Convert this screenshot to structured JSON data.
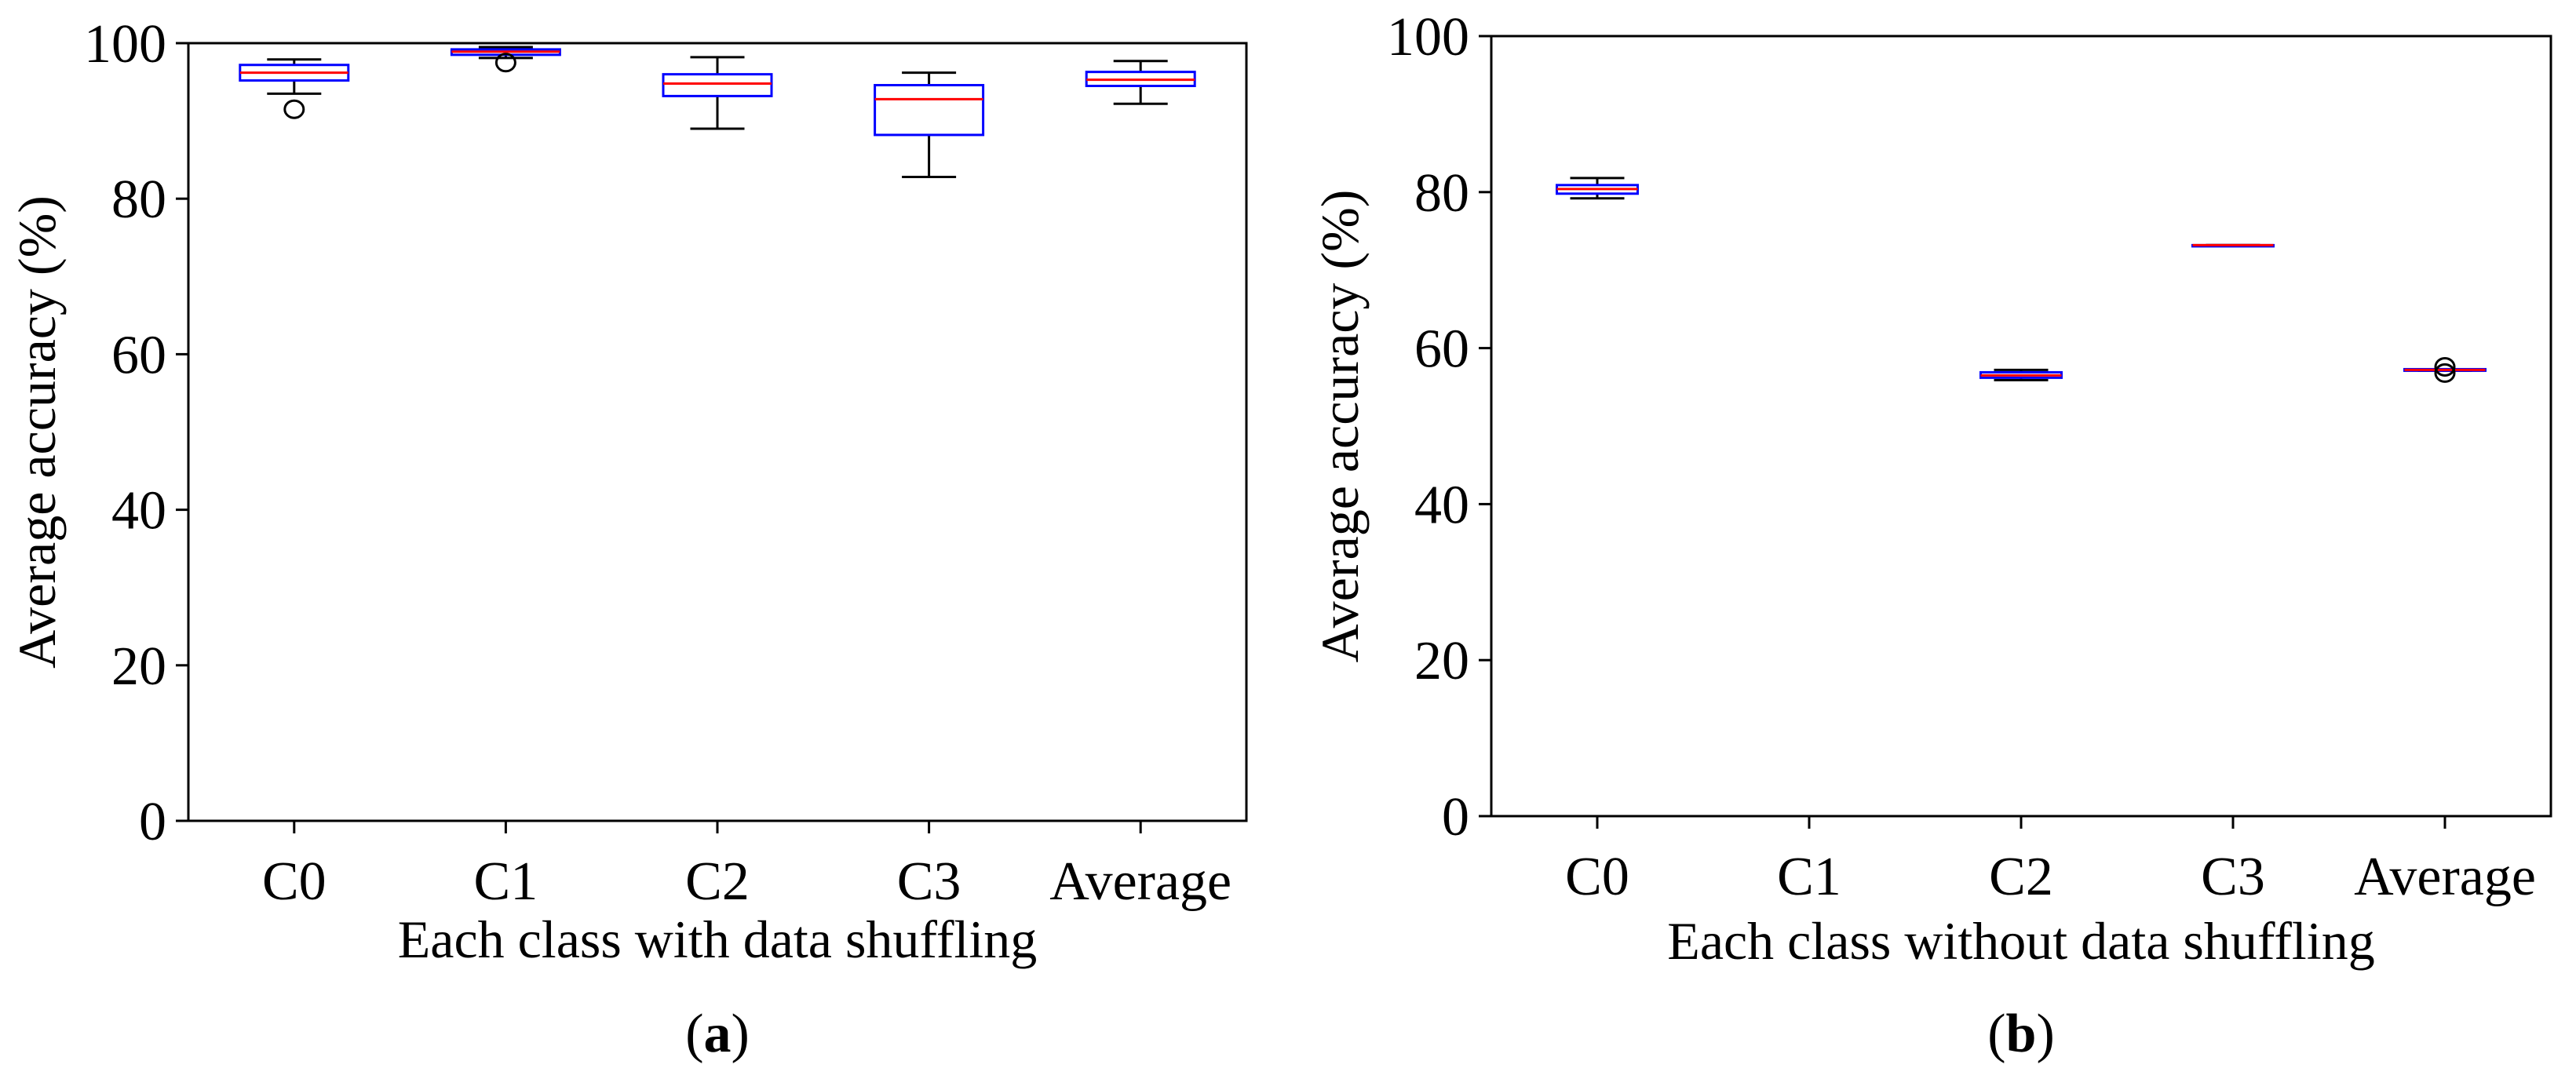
{
  "colors": {
    "box": "#0000ff",
    "median": "#ff0000",
    "whisker": "#000000",
    "frame": "#000000",
    "background": "#ffffff"
  },
  "chart_data": [
    {
      "type": "box",
      "panel_label": "a",
      "xlabel": "Each class with data shuffling",
      "ylabel": "Average accuracy (%)",
      "ylim": [
        0,
        100
      ],
      "yticks": [
        0,
        20,
        40,
        60,
        80,
        100
      ],
      "categories": [
        "C0",
        "C1",
        "C2",
        "C3",
        "Average"
      ],
      "boxes": [
        {
          "category": "C0",
          "min": 93.5,
          "q1": 95.2,
          "median": 96.2,
          "q3": 97.2,
          "max": 97.9,
          "outliers": [
            91.5
          ]
        },
        {
          "category": "C1",
          "min": 98.1,
          "q1": 98.5,
          "median": 98.9,
          "q3": 99.2,
          "max": 99.5,
          "outliers": [
            97.5
          ]
        },
        {
          "category": "C2",
          "min": 89.0,
          "q1": 93.2,
          "median": 94.8,
          "q3": 96.0,
          "max": 98.2,
          "outliers": []
        },
        {
          "category": "C3",
          "min": 82.8,
          "q1": 88.2,
          "median": 92.8,
          "q3": 94.6,
          "max": 96.2,
          "outliers": []
        },
        {
          "category": "Average",
          "min": 92.2,
          "q1": 94.5,
          "median": 95.3,
          "q3": 96.3,
          "max": 97.7,
          "outliers": []
        }
      ]
    },
    {
      "type": "box",
      "panel_label": "b",
      "xlabel": "Each class without data shuffling",
      "ylabel": "Average accuracy (%)",
      "ylim": [
        0,
        100
      ],
      "yticks": [
        0,
        20,
        40,
        60,
        80,
        100
      ],
      "categories": [
        "C0",
        "C1",
        "C2",
        "C3",
        "Average"
      ],
      "boxes": [
        {
          "category": "C0",
          "min": 79.2,
          "q1": 79.8,
          "median": 80.4,
          "q3": 80.9,
          "max": 81.8,
          "outliers": []
        },
        {
          "category": "C1",
          "min": null,
          "q1": null,
          "median": null,
          "q3": null,
          "max": null,
          "outliers": []
        },
        {
          "category": "C2",
          "min": 55.9,
          "q1": 56.2,
          "median": 56.5,
          "q3": 56.9,
          "max": 57.2,
          "outliers": []
        },
        {
          "category": "C3",
          "min": 73.2,
          "q1": 73.2,
          "median": 73.2,
          "q3": 73.2,
          "max": 73.2,
          "outliers": []
        },
        {
          "category": "Average",
          "min": 57.1,
          "q1": 57.1,
          "median": 57.2,
          "q3": 57.3,
          "max": 57.3,
          "outliers": [
            57.6,
            56.8
          ]
        }
      ]
    }
  ]
}
